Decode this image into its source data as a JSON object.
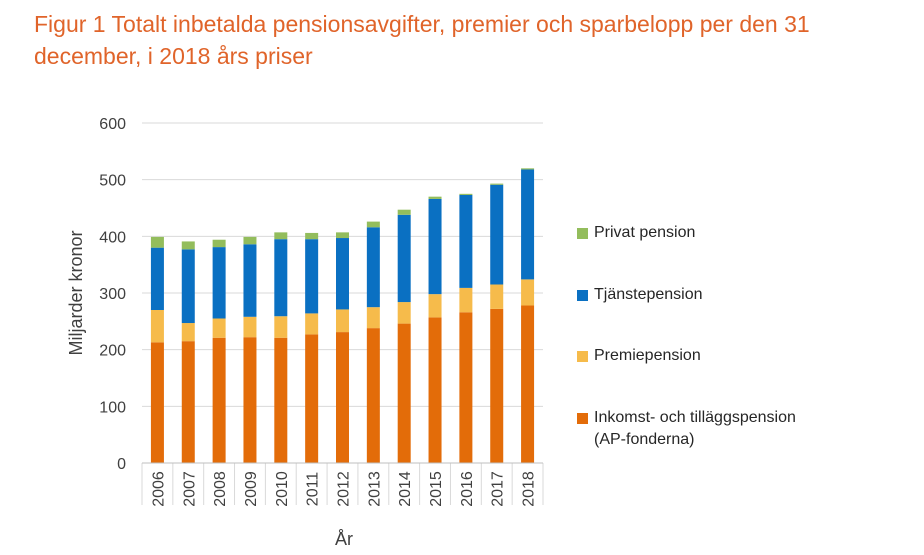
{
  "figure": {
    "title": "Figur 1 Totalt inbetalda pensionsavgifter, premier och sparbelopp per den 31 december, i 2018 års priser"
  },
  "colors": {
    "title": "#e0642a",
    "inkomst": "#e36c09",
    "premie": "#f6bb4b",
    "tjanste": "#0a70c2",
    "privat": "#93bd5c",
    "grid": "#d9d9d9",
    "text": "#404040"
  },
  "chart_data": {
    "type": "bar",
    "stacked": true,
    "title": "Figur 1 Totalt inbetalda pensionsavgifter, premier och sparbelopp per den 31 december, i 2018 års priser",
    "xlabel": "År",
    "ylabel": "Miljarder kronor",
    "ylim": [
      0,
      600
    ],
    "yticks": [
      0,
      100,
      200,
      300,
      400,
      500,
      600
    ],
    "grid": true,
    "legend_position": "right",
    "categories": [
      "2006",
      "2007",
      "2008",
      "2009",
      "2010",
      "2011",
      "2012",
      "2013",
      "2014",
      "2015",
      "2016",
      "2017",
      "2018"
    ],
    "series": [
      {
        "name": "Inkomst- och tilläggspension\n(AP-fonderna)",
        "key": "inkomst",
        "values": [
          213,
          215,
          221,
          222,
          221,
          227,
          231,
          238,
          246,
          257,
          266,
          272,
          278
        ]
      },
      {
        "name": "Premiepension",
        "key": "premie",
        "values": [
          57,
          32,
          34,
          36,
          38,
          37,
          40,
          37,
          38,
          41,
          43,
          43,
          46
        ]
      },
      {
        "name": "Tjänstepension",
        "key": "tjanste",
        "values": [
          110,
          130,
          126,
          128,
          136,
          131,
          126,
          141,
          154,
          168,
          164,
          176,
          194
        ]
      },
      {
        "name": "Privat pension",
        "key": "privat",
        "values": [
          19,
          14,
          13,
          13,
          12,
          11,
          10,
          10,
          9,
          4,
          2,
          2,
          2
        ]
      }
    ]
  }
}
